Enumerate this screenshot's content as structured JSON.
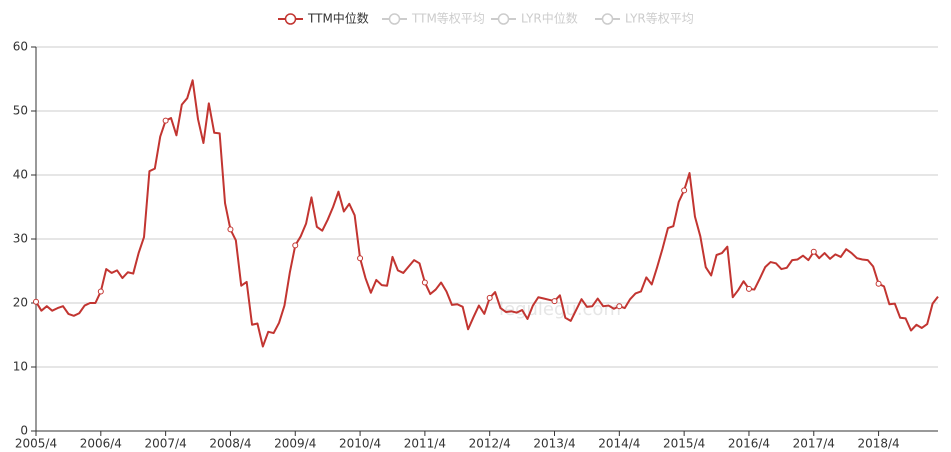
{
  "chart_data": {
    "type": "line",
    "watermark": "legulegu.com",
    "categories": [
      "2005/4",
      null,
      null,
      null,
      null,
      null,
      null,
      null,
      null,
      null,
      null,
      null,
      "2006/4",
      null,
      null,
      null,
      null,
      null,
      null,
      null,
      null,
      null,
      null,
      null,
      "2007/4",
      null,
      null,
      null,
      null,
      null,
      null,
      null,
      null,
      null,
      null,
      null,
      "2008/4",
      null,
      null,
      null,
      null,
      null,
      null,
      null,
      null,
      null,
      null,
      null,
      "2009/4",
      null,
      null,
      null,
      null,
      null,
      null,
      null,
      null,
      null,
      null,
      null,
      "2010/4",
      null,
      null,
      null,
      null,
      null,
      null,
      null,
      null,
      null,
      null,
      null,
      "2011/4",
      null,
      null,
      null,
      null,
      null,
      null,
      null,
      null,
      null,
      null,
      null,
      "2012/4",
      null,
      null,
      null,
      null,
      null,
      null,
      null,
      null,
      null,
      null,
      null,
      "2013/4",
      null,
      null,
      null,
      null,
      null,
      null,
      null,
      null,
      null,
      null,
      null,
      "2014/4",
      null,
      null,
      null,
      null,
      null,
      null,
      null,
      null,
      null,
      null,
      null,
      "2015/4",
      null,
      null,
      null,
      null,
      null,
      null,
      null,
      null,
      null,
      null,
      null,
      "2016/4",
      null,
      null,
      null,
      null,
      null,
      null,
      null,
      null,
      null,
      null,
      null,
      "2017/4",
      null,
      null,
      null,
      null,
      null,
      null,
      null,
      null,
      null,
      null,
      null,
      "2018/4",
      null,
      null,
      null,
      null,
      null,
      null,
      null,
      null,
      null,
      null,
      null
    ],
    "series": [
      {
        "name": "TTM中位数",
        "color": "#c23531",
        "values": [
          20.2,
          18.8,
          19.5,
          18.8,
          19.2,
          19.5,
          18.3,
          18.0,
          18.4,
          19.6,
          20.0,
          20.0,
          21.8,
          25.3,
          24.7,
          25.1,
          23.9,
          24.8,
          24.6,
          27.8,
          30.3,
          40.6,
          41.0,
          46.0,
          48.5,
          48.9,
          46.2,
          51.0,
          52.0,
          54.8,
          48.7,
          45.0,
          51.2,
          46.6,
          46.5,
          35.6,
          31.5,
          29.8,
          22.7,
          23.3,
          16.6,
          16.8,
          13.2,
          15.5,
          15.3,
          16.9,
          19.6,
          24.8,
          29.0,
          30.4,
          32.4,
          36.5,
          31.9,
          31.3,
          33.0,
          35.0,
          37.4,
          34.3,
          35.5,
          33.7,
          27.0,
          23.9,
          21.6,
          23.6,
          22.8,
          22.7,
          27.2,
          25.1,
          24.7,
          25.7,
          26.7,
          26.2,
          23.2,
          21.4,
          22.1,
          23.2,
          21.8,
          19.7,
          19.8,
          19.4,
          15.9,
          17.8,
          19.6,
          18.3,
          20.8,
          21.7,
          19.2,
          18.6,
          18.7,
          18.5,
          18.9,
          17.5,
          19.6,
          20.9,
          20.7,
          20.5,
          20.3,
          21.2,
          17.7,
          17.2,
          18.9,
          20.6,
          19.4,
          19.5,
          20.7,
          19.5,
          19.6,
          19.1,
          19.5,
          19.2,
          20.6,
          21.5,
          21.8,
          24.0,
          22.9,
          25.6,
          28.5,
          31.7,
          32.0,
          35.8,
          37.6,
          40.3,
          33.5,
          30.4,
          25.6,
          24.3,
          27.5,
          27.8,
          28.8,
          20.9,
          22.0,
          23.4,
          22.2,
          22.1,
          23.8,
          25.6,
          26.4,
          26.2,
          25.3,
          25.5,
          26.7,
          26.8,
          27.4,
          26.7,
          28.0,
          27.0,
          27.8,
          26.9,
          27.6,
          27.2,
          28.4,
          27.8,
          27.0,
          26.8,
          26.7,
          25.7,
          23.0,
          22.6,
          19.8,
          19.9,
          17.7,
          17.6,
          15.7,
          16.6,
          16.1,
          16.7,
          19.9,
          21.0
        ]
      }
    ],
    "legend_inactive": [
      "TTM等权平均",
      "LYR中位数",
      "LYR等权平均"
    ],
    "inactive_color": "#cccccc",
    "symbol_interval": 12,
    "ylim": [
      0,
      60
    ],
    "yticks": [
      0,
      10,
      20,
      30,
      40,
      50,
      60
    ],
    "grid": true
  }
}
